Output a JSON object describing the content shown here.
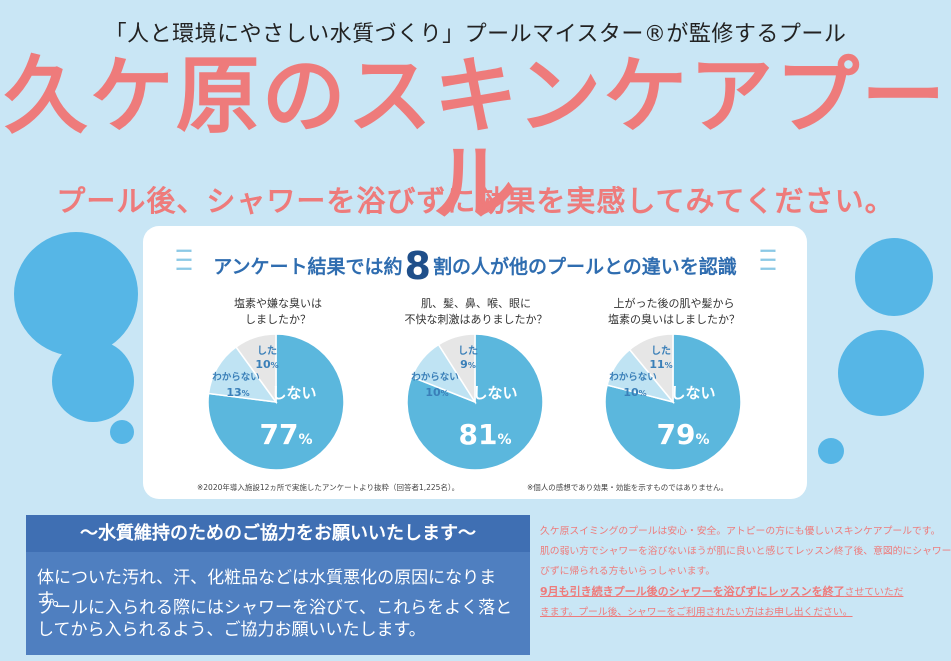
{
  "header": {
    "tagline": "「人と環境にやさしい水質づくり」プールマイスター®が監修するプール",
    "title": "久ケ原のスキンケアプール",
    "subtitle": "プール後、シャワーを浴びずに効果を実感してみてください。"
  },
  "survey": {
    "heading_pre": "アンケート結果では約",
    "heading_number": "8",
    "heading_post": "割の人が他のプールとの違いを認識",
    "charts": [
      {
        "question": [
          "塩素や嫌な臭いは",
          "しましたか？"
        ],
        "shina_label": "しない",
        "shina_value": "77",
        "shina_pct": 77,
        "wakaranai_label": "わからない",
        "wakaranai_value": "13",
        "wakaranai_pct": 13,
        "shita_label": "した",
        "shita_value": "10",
        "shita_pct": 10
      },
      {
        "question": [
          "肌、髪、鼻、喉、眼に",
          "不快な刺激はありましたか？"
        ],
        "shina_label": "しない",
        "shina_value": "81",
        "shina_pct": 81,
        "wakaranai_label": "わからない",
        "wakaranai_value": "10",
        "wakaranai_pct": 10,
        "shita_label": "した",
        "shita_value": "9",
        "shita_pct": 9
      },
      {
        "question": [
          "上がった後の肌や髪から",
          "塩素の臭いはしましたか？"
        ],
        "shina_label": "しない",
        "shina_value": "79",
        "shina_pct": 79,
        "wakaranai_label": "わからない",
        "wakaranai_value": "10",
        "wakaranai_pct": 10,
        "shita_label": "した",
        "shita_value": "11",
        "shita_pct": 11
      }
    ],
    "percent_sign": "%",
    "footnote_1": "※2020年導入施設12ヵ所で実施したアンケートより抜粋（回答者1,225名）。",
    "footnote_2": "※個人の感想であり効果・効能を示すものではありません。"
  },
  "notice": {
    "heading": "～水質維持のためのご協力をお願いいたします～",
    "p1": "体についた汚れ、汗、化粧品などは水質悪化の原因になります。",
    "p2": "プールに入られる際にはシャワーを浴びて、これらをよく落としてから入られるよう、ご協力お願いいたします。"
  },
  "info": {
    "line1": "久ケ原スイミングのプールは安心・安全。アトピーの方にも優しいスキンケアプールです。",
    "line2": "肌の弱い方でシャワーを浴びないほうが肌に良いと感じてレッスン終了後、意図的にシャワーを浴",
    "line3": "びずに帰られる方もいらっしゃいます。",
    "line4_em": "9月も引き続きプール後のシャワーを浴びずにレッスンを終了",
    "line4_rest": "させていただ",
    "line5": "きます。プール後、シャワーをご利用されたい方はお申し出ください。"
  },
  "colors": {
    "background": "#c9e6f5",
    "accent_pink": "#ee7b7b",
    "pie_main": "#5bb7dd",
    "pie_light": "#bfe3f3",
    "pie_grey": "#e6e6e6",
    "bubble": "#5bb9e8",
    "notice_blue": "#4f7fc0"
  }
}
